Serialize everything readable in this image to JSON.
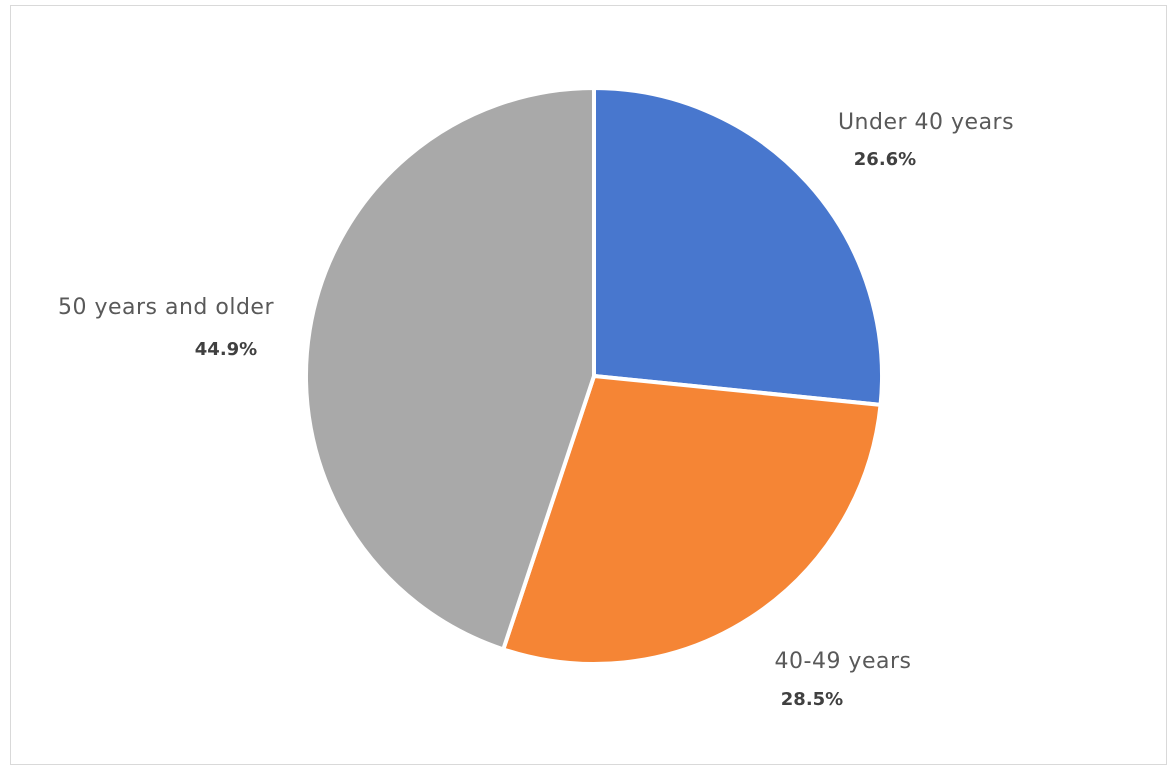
{
  "chart_data": {
    "type": "pie",
    "start_angle_deg": 0,
    "direction": "clockwise",
    "slices": [
      {
        "label": "Under 40 years",
        "value": 26.6,
        "value_label": "26.6%",
        "color": "#4877CE"
      },
      {
        "label": "40-49 years",
        "value": 28.5,
        "value_label": "28.5%",
        "color": "#F58535"
      },
      {
        "label": "50 years and older",
        "value": 44.9,
        "value_label": "44.9%",
        "color": "#A9A9A9"
      }
    ],
    "legend": "none",
    "separator_color": "#ffffff"
  }
}
